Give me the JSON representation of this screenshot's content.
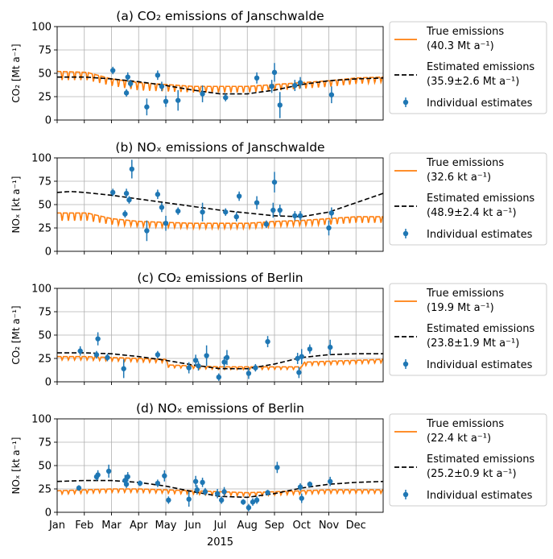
{
  "figure": {
    "xlabel": "2015",
    "month_labels": [
      "Jan",
      "Feb",
      "Mar",
      "Apr",
      "May",
      "Jun",
      "Jul",
      "Aug",
      "Sep",
      "Oct",
      "Nov",
      "Dec"
    ],
    "colors": {
      "true": "#ff7f0e",
      "estimated": "#000000",
      "points": "#1f77b4",
      "grid": "#b0b0b0"
    }
  },
  "chart_data": [
    {
      "type": "line",
      "title": "(a) CO₂ emissions of Janschwalde",
      "ylabel": "CO₂ [Mt a⁻¹]",
      "ylim": [
        0,
        100
      ],
      "yticks": [
        0,
        25,
        50,
        75,
        100
      ],
      "xlim_months": [
        0,
        12
      ],
      "grid": true,
      "legend_position": "right",
      "legend": {
        "true_label": "True emissions",
        "true_value": "(40.3 Mt a⁻¹)",
        "est_label": "Estimated emissions",
        "est_value": "(35.9±2.6 Mt a⁻¹)",
        "ind_label": "Individual estimates"
      },
      "true_emissions": {
        "month_x": [
          0,
          1.1,
          2,
          3,
          4,
          5,
          6,
          7,
          8,
          9,
          10,
          11,
          12
        ],
        "weekday_level": [
          52,
          51,
          44,
          40,
          38,
          36,
          36,
          36,
          38,
          40,
          42,
          45,
          46
        ],
        "weekend_level": [
          42,
          42,
          36,
          31,
          30,
          29,
          29,
          29,
          31,
          33,
          35,
          38,
          40
        ]
      },
      "estimated_emissions": {
        "month_x": [
          0,
          1,
          2,
          3,
          4,
          5,
          6,
          7,
          8,
          9,
          10,
          11,
          12
        ],
        "values": [
          46,
          46,
          44,
          41,
          37,
          32,
          28,
          28,
          32,
          38,
          42,
          44,
          45
        ]
      },
      "individual_estimates": [
        {
          "x": 2.05,
          "y": 53,
          "err": 4
        },
        {
          "x": 2.55,
          "y": 29,
          "err": 4
        },
        {
          "x": 2.6,
          "y": 46,
          "err": 5
        },
        {
          "x": 2.7,
          "y": 39,
          "err": 4
        },
        {
          "x": 3.3,
          "y": 14,
          "err": 9
        },
        {
          "x": 3.7,
          "y": 48,
          "err": 5
        },
        {
          "x": 3.85,
          "y": 36,
          "err": 5
        },
        {
          "x": 4.0,
          "y": 20,
          "err": 6
        },
        {
          "x": 4.45,
          "y": 21,
          "err": 11
        },
        {
          "x": 5.35,
          "y": 28,
          "err": 9
        },
        {
          "x": 6.2,
          "y": 24,
          "err": 4
        },
        {
          "x": 7.35,
          "y": 45,
          "err": 6
        },
        {
          "x": 7.9,
          "y": 36,
          "err": 7
        },
        {
          "x": 8.0,
          "y": 51,
          "err": 10
        },
        {
          "x": 8.2,
          "y": 16,
          "err": 14
        },
        {
          "x": 8.75,
          "y": 37,
          "err": 6
        },
        {
          "x": 8.95,
          "y": 40,
          "err": 6
        },
        {
          "x": 10.1,
          "y": 27,
          "err": 9
        }
      ]
    },
    {
      "type": "line",
      "title": "(b) NOₓ emissions of Janschwalde",
      "ylabel": "NOₓ [kt a⁻¹]",
      "ylim": [
        0,
        100
      ],
      "yticks": [
        0,
        25,
        50,
        75,
        100
      ],
      "xlim_months": [
        0,
        12
      ],
      "grid": true,
      "legend_position": "right",
      "legend": {
        "true_label": "True emissions",
        "true_value": "(32.6 kt a⁻¹)",
        "est_label": "Estimated emissions",
        "est_value": "(48.9±2.4 kt a⁻¹)",
        "ind_label": "Individual estimates"
      },
      "true_emissions": {
        "month_x": [
          0,
          1.1,
          2,
          3,
          4,
          5,
          6,
          7,
          8,
          9,
          10,
          11,
          12
        ],
        "weekday_level": [
          41,
          41,
          35,
          32,
          31,
          30,
          30,
          30,
          32,
          33,
          35,
          37,
          37
        ],
        "weekend_level": [
          32,
          32,
          28,
          26,
          25,
          24,
          24,
          24,
          26,
          27,
          28,
          30,
          30
        ]
      },
      "estimated_emissions": {
        "month_x": [
          0,
          0.5,
          1,
          2,
          3,
          4,
          5,
          6,
          7,
          8,
          9,
          10,
          11,
          12
        ],
        "values": [
          63,
          64,
          63,
          60,
          56,
          52,
          48,
          44,
          41,
          38,
          37,
          42,
          52,
          62
        ]
      },
      "individual_estimates": [
        {
          "x": 2.05,
          "y": 63,
          "err": 4
        },
        {
          "x": 2.5,
          "y": 40,
          "err": 4
        },
        {
          "x": 2.55,
          "y": 62,
          "err": 5
        },
        {
          "x": 2.65,
          "y": 55,
          "err": 4
        },
        {
          "x": 2.75,
          "y": 88,
          "err": 10
        },
        {
          "x": 3.3,
          "y": 22,
          "err": 11
        },
        {
          "x": 3.7,
          "y": 61,
          "err": 5
        },
        {
          "x": 3.85,
          "y": 47,
          "err": 5
        },
        {
          "x": 4.0,
          "y": 30,
          "err": 8
        },
        {
          "x": 4.45,
          "y": 43,
          "err": 4
        },
        {
          "x": 5.35,
          "y": 42,
          "err": 10
        },
        {
          "x": 6.2,
          "y": 42,
          "err": 4
        },
        {
          "x": 6.6,
          "y": 37,
          "err": 5
        },
        {
          "x": 6.7,
          "y": 59,
          "err": 5
        },
        {
          "x": 7.35,
          "y": 52,
          "err": 7
        },
        {
          "x": 7.7,
          "y": 29,
          "err": 4
        },
        {
          "x": 7.95,
          "y": 44,
          "err": 8
        },
        {
          "x": 8.0,
          "y": 74,
          "err": 11
        },
        {
          "x": 8.2,
          "y": 44,
          "err": 6
        },
        {
          "x": 8.75,
          "y": 38,
          "err": 5
        },
        {
          "x": 8.95,
          "y": 38,
          "err": 5
        },
        {
          "x": 10.0,
          "y": 25,
          "err": 8
        },
        {
          "x": 10.1,
          "y": 41,
          "err": 6
        }
      ]
    },
    {
      "type": "line",
      "title": "(c) CO₂ emissions of Berlin",
      "ylabel": "CO₂ [Mt a⁻¹]",
      "ylim": [
        0,
        100
      ],
      "yticks": [
        0,
        25,
        50,
        75,
        100
      ],
      "xlim_months": [
        0,
        12
      ],
      "grid": true,
      "legend_position": "right",
      "legend": {
        "true_label": "True emissions",
        "true_value": "(19.9 Mt a⁻¹)",
        "est_label": "Estimated emissions",
        "est_value": "(23.8±1.9 Mt a⁻¹)",
        "ind_label": "Individual estimates"
      },
      "true_emissions": {
        "month_x": [
          0,
          1,
          2,
          3,
          4,
          4.1,
          5,
          6,
          7,
          8,
          9,
          9.1,
          10,
          11,
          12
        ],
        "weekday_level": [
          27,
          27,
          26,
          25,
          24,
          18,
          17,
          16,
          16,
          16,
          16,
          21,
          22,
          23,
          24
        ],
        "weekend_level": [
          23,
          23,
          22,
          21,
          20,
          15,
          14,
          13,
          13,
          13,
          13,
          17,
          18,
          19,
          20
        ]
      },
      "estimated_emissions": {
        "month_x": [
          0,
          1,
          2,
          3,
          4,
          5,
          6,
          7,
          8,
          9,
          10,
          11,
          12
        ],
        "values": [
          31,
          31,
          30,
          27,
          23,
          18,
          14,
          14,
          19,
          26,
          29,
          30,
          30
        ]
      },
      "individual_estimates": [
        {
          "x": 0.85,
          "y": 33,
          "err": 5
        },
        {
          "x": 1.45,
          "y": 29,
          "err": 4
        },
        {
          "x": 1.5,
          "y": 46,
          "err": 7
        },
        {
          "x": 1.85,
          "y": 26,
          "err": 4
        },
        {
          "x": 2.45,
          "y": 14,
          "err": 10
        },
        {
          "x": 3.7,
          "y": 29,
          "err": 4
        },
        {
          "x": 4.85,
          "y": 15,
          "err": 6
        },
        {
          "x": 5.1,
          "y": 23,
          "err": 6
        },
        {
          "x": 5.2,
          "y": 17,
          "err": 5
        },
        {
          "x": 5.5,
          "y": 28,
          "err": 11
        },
        {
          "x": 5.95,
          "y": 5,
          "err": 4
        },
        {
          "x": 6.15,
          "y": 21,
          "err": 6
        },
        {
          "x": 6.25,
          "y": 26,
          "err": 8
        },
        {
          "x": 7.05,
          "y": 9,
          "err": 6
        },
        {
          "x": 7.3,
          "y": 15,
          "err": 4
        },
        {
          "x": 7.75,
          "y": 43,
          "err": 6
        },
        {
          "x": 8.85,
          "y": 25,
          "err": 6
        },
        {
          "x": 8.9,
          "y": 10,
          "err": 6
        },
        {
          "x": 9.0,
          "y": 27,
          "err": 8
        },
        {
          "x": 9.3,
          "y": 35,
          "err": 5
        },
        {
          "x": 10.05,
          "y": 37,
          "err": 8
        }
      ]
    },
    {
      "type": "line",
      "title": "(d) NOₓ emissions of Berlin",
      "ylabel": "NOₓ [kt a⁻¹]",
      "ylim": [
        0,
        100
      ],
      "yticks": [
        0,
        25,
        50,
        75,
        100
      ],
      "xlim_months": [
        0,
        12
      ],
      "grid": true,
      "legend_position": "right",
      "legend": {
        "true_label": "True emissions",
        "true_value": "(22.4 kt a⁻¹)",
        "est_label": "Estimated emissions",
        "est_value": "(25.2±0.9 kt a⁻¹)",
        "ind_label": "Individual estimates"
      },
      "true_emissions": {
        "month_x": [
          0,
          1,
          2,
          3,
          4,
          5,
          6,
          7,
          8,
          9,
          10,
          11,
          12
        ],
        "weekday_level": [
          23,
          24,
          25,
          25,
          24,
          23,
          22,
          21,
          22,
          23,
          24,
          24,
          24
        ],
        "weekend_level": [
          19,
          20,
          21,
          21,
          20,
          19,
          18,
          17,
          18,
          19,
          20,
          20,
          20
        ]
      },
      "estimated_emissions": {
        "month_x": [
          0,
          1,
          2,
          3,
          4,
          5,
          6,
          7,
          8,
          9,
          10,
          11,
          12
        ],
        "values": [
          33,
          34,
          34,
          32,
          28,
          22,
          17,
          16,
          20,
          26,
          30,
          32,
          33
        ]
      },
      "individual_estimates": [
        {
          "x": 0.8,
          "y": 26,
          "err": 3
        },
        {
          "x": 1.45,
          "y": 38,
          "err": 4
        },
        {
          "x": 1.5,
          "y": 40,
          "err": 5
        },
        {
          "x": 1.9,
          "y": 44,
          "err": 7
        },
        {
          "x": 2.5,
          "y": 34,
          "err": 6
        },
        {
          "x": 2.55,
          "y": 30,
          "err": 4
        },
        {
          "x": 2.6,
          "y": 38,
          "err": 5
        },
        {
          "x": 3.05,
          "y": 31,
          "err": 3
        },
        {
          "x": 3.7,
          "y": 31,
          "err": 4
        },
        {
          "x": 3.95,
          "y": 39,
          "err": 6
        },
        {
          "x": 4.1,
          "y": 13,
          "err": 4
        },
        {
          "x": 4.85,
          "y": 14,
          "err": 8
        },
        {
          "x": 5.1,
          "y": 33,
          "err": 6
        },
        {
          "x": 5.15,
          "y": 24,
          "err": 5
        },
        {
          "x": 5.35,
          "y": 32,
          "err": 5
        },
        {
          "x": 5.45,
          "y": 22,
          "err": 4
        },
        {
          "x": 5.9,
          "y": 20,
          "err": 5
        },
        {
          "x": 6.05,
          "y": 13,
          "err": 4
        },
        {
          "x": 6.15,
          "y": 22,
          "err": 5
        },
        {
          "x": 6.85,
          "y": 11,
          "err": 3
        },
        {
          "x": 7.05,
          "y": 5,
          "err": 4
        },
        {
          "x": 7.2,
          "y": 11,
          "err": 4
        },
        {
          "x": 7.35,
          "y": 13,
          "err": 4
        },
        {
          "x": 7.75,
          "y": 21,
          "err": 3
        },
        {
          "x": 8.1,
          "y": 48,
          "err": 6
        },
        {
          "x": 8.95,
          "y": 27,
          "err": 4
        },
        {
          "x": 9.0,
          "y": 15,
          "err": 5
        },
        {
          "x": 9.3,
          "y": 30,
          "err": 3
        },
        {
          "x": 10.05,
          "y": 33,
          "err": 5
        }
      ]
    }
  ]
}
